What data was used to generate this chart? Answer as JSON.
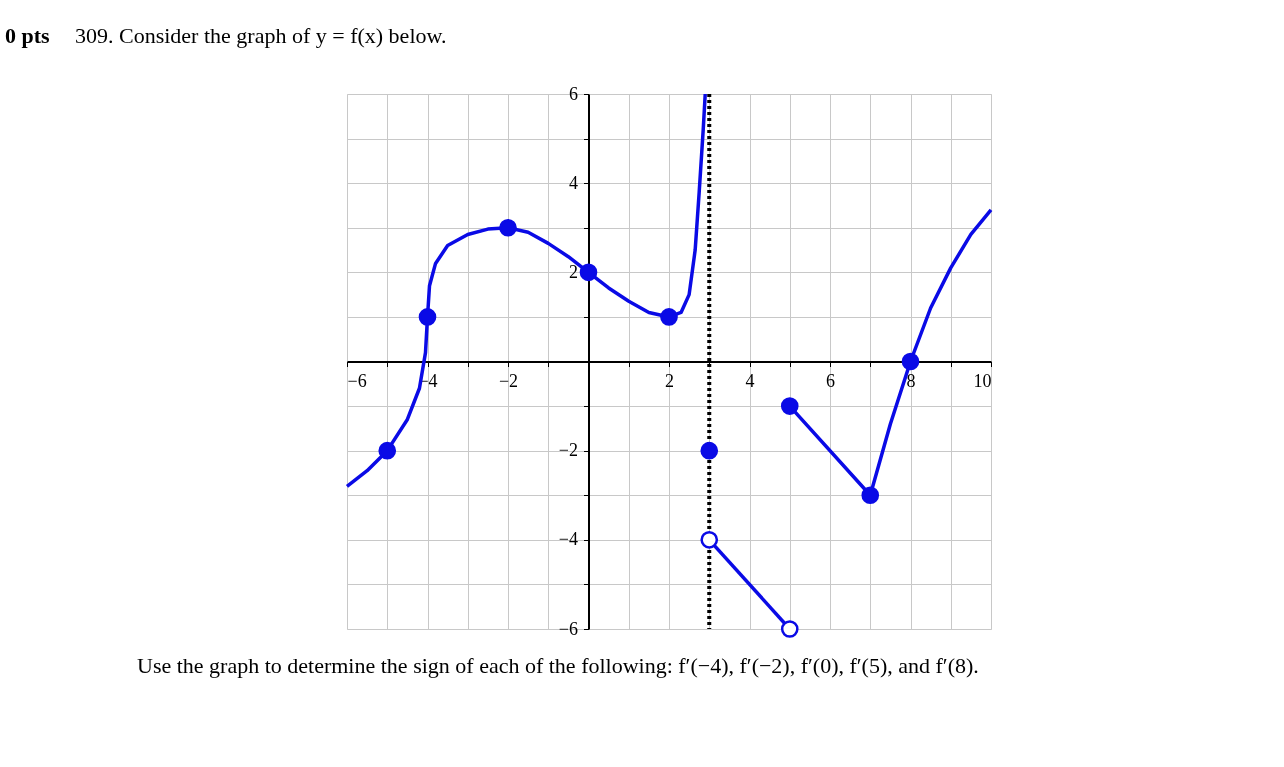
{
  "chart_data": {
    "type": "line",
    "title": "309. Consider the graph of y = f(x) below.",
    "annotations": [
      "0 pts",
      "Use the graph to determine the sign of each of the following: f′(−4), f′(−2), f′(0), f′(5), and f′(8)."
    ],
    "series": [
      {
        "color": "#0a0ae6",
        "x": [
          -6,
          -5.5,
          -5,
          -4.5,
          -4.2,
          -4.05,
          -4,
          -3.95,
          -3.8,
          -3.5,
          -3,
          -2.5,
          -2,
          -1.5,
          -1,
          -0.5,
          0,
          0.5,
          1,
          1.5,
          2,
          2.3,
          2.5,
          2.65,
          2.75,
          2.85,
          2.9
        ],
        "values": [
          -2.8,
          -2.45,
          -2,
          -1.3,
          -0.6,
          0.2,
          1,
          1.7,
          2.2,
          2.6,
          2.85,
          2.97,
          3,
          2.9,
          2.65,
          2.35,
          2,
          1.65,
          1.35,
          1.1,
          1,
          1.1,
          1.5,
          2.5,
          3.8,
          5.2,
          6
        ]
      },
      {
        "color": "#0a0ae6",
        "x": [
          3,
          5
        ],
        "values": [
          -4,
          -6
        ]
      },
      {
        "color": "#0a0ae6",
        "x": [
          5,
          7,
          7.5,
          8,
          8.5,
          9,
          9.5,
          10
        ],
        "values": [
          -1,
          -3,
          -1.4,
          0,
          1.2,
          2.1,
          2.85,
          3.4
        ]
      },
      {
        "type": "scatter",
        "color": "#0a0ae6",
        "marker": "circle",
        "x": [
          -5,
          -4,
          -2,
          0,
          2,
          3,
          5,
          7,
          8
        ],
        "values": [
          -2,
          1,
          3,
          2,
          1,
          -2,
          -1,
          -3,
          0
        ]
      },
      {
        "type": "scatter",
        "color": "#0a0ae6",
        "colors": [
          "#ffffff",
          "#ffffff"
        ],
        "marker": "circle",
        "x": [
          3,
          5
        ],
        "values": [
          -4,
          -6
        ]
      }
    ],
    "xlim": [
      -6,
      10
    ],
    "ylim": [
      -6,
      6
    ],
    "xticks": [
      -6,
      {
        "value": -5,
        "label": null
      },
      -4,
      {
        "value": -3,
        "label": null
      },
      -2,
      {
        "value": -1,
        "label": null
      },
      {
        "value": 0,
        "label": null
      },
      {
        "value": 1,
        "label": null
      },
      2,
      {
        "value": 3,
        "label": null
      },
      4,
      {
        "value": 5,
        "label": null
      },
      6,
      {
        "value": 7,
        "label": null
      },
      8,
      {
        "value": 9,
        "label": null
      },
      10
    ],
    "yticks": [
      -6,
      {
        "value": -5,
        "label": null
      },
      -4,
      {
        "value": -3,
        "label": null
      },
      -2,
      {
        "value": -1,
        "label": null
      },
      {
        "value": 0,
        "label": null
      },
      {
        "value": 1,
        "label": null
      },
      2,
      {
        "value": 3,
        "label": null
      },
      4,
      {
        "value": 5,
        "label": null
      },
      6
    ],
    "ref_lines": [
      {
        "axis": "x",
        "value": 3,
        "label": null,
        "color": "#000000",
        "line_style": "dotted"
      }
    ],
    "grid": true
  }
}
